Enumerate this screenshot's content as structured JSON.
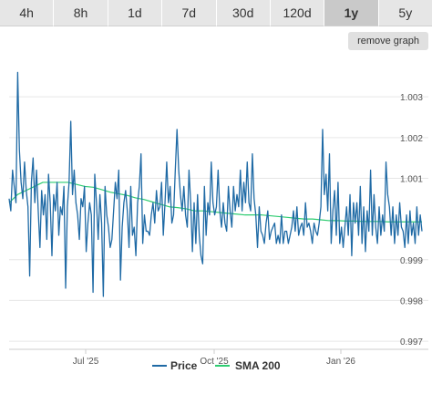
{
  "tabs": [
    {
      "label": "4h",
      "active": false
    },
    {
      "label": "8h",
      "active": false
    },
    {
      "label": "1d",
      "active": false
    },
    {
      "label": "7d",
      "active": false
    },
    {
      "label": "30d",
      "active": false
    },
    {
      "label": "120d",
      "active": false
    },
    {
      "label": "1y",
      "active": true
    },
    {
      "label": "5y",
      "active": false
    }
  ],
  "remove_graph_label": "remove graph",
  "chart_data": {
    "type": "line",
    "x_ticks": [
      "Jul '25",
      "Oct '25",
      "Jan '26"
    ],
    "y_ticks": [
      0.997,
      0.998,
      0.999,
      1.001,
      1.002,
      1.003
    ],
    "y_tick_labels": [
      "0.997",
      "0.998",
      "0.999",
      "1.001",
      "1.002",
      "1.003"
    ],
    "ylim": [
      0.9968,
      1.0039
    ],
    "grid": true,
    "legend_position": "bottom",
    "series": [
      {
        "name": "Price",
        "color": "#1f6aa5",
        "values": [
          1.0005,
          1.0002,
          1.0012,
          1.0008,
          1.0004,
          1.0036,
          1.0017,
          1.0009,
          1.0005,
          1.0014,
          1.0007,
          1.0003,
          0.9986,
          1.0009,
          1.0015,
          1.0004,
          1.0012,
          1.0002,
          0.9993,
          1.0007,
          1.0001,
          1.0006,
          0.9995,
          1.0011,
          1.0004,
          0.9991,
          1.0006,
          1.0002,
          1.0009,
          0.9996,
          1.0003,
          1.0001,
          1.0008,
          0.9983,
          1.0003,
          1.0009,
          1.0024,
          1.0006,
          1.0012,
          1.0004,
          1.0001,
          0.9995,
          1.0005,
          1.0003,
          1.0008,
          0.9992,
          0.9999,
          1.0004,
          1.0001,
          0.9982,
          1.0011,
          1.0004,
          0.9995,
          1.0006,
          0.9999,
          0.9981,
          1.0008,
          1.0001,
          0.9998,
          0.9993,
          0.9995,
          1.0002,
          1.0009,
          1.0005,
          1.0012,
          0.9985,
          0.9998,
          1.0004,
          1.0007,
          1.0002,
          0.9993,
          1.0008,
          0.9996,
          0.9998,
          0.9991,
          1.0004,
          1.0008,
          1.0016,
          0.9994,
          1.0001,
          0.9997,
          0.9997,
          0.9996,
          1.0001,
          1.0004,
          0.9999,
          1.0007,
          1.0002,
          1.0003,
          1.0009,
          0.9996,
          1.0004,
          1.0014,
          1.0004,
          1.0008,
          0.9999,
          1.0001,
          1.0012,
          1.0022,
          1.0012,
          1.0006,
          1.0002,
          1.0008,
          1.0001,
          0.9998,
          1.0012,
          1.0004,
          0.9992,
          1.0004,
          0.9994,
          1.0006,
          0.9996,
          0.9991,
          0.9989,
          1.0008,
          0.9996,
          1.0004,
          1.0001,
          1.0014,
          1.0004,
          1.0001,
          1.0003,
          1.0012,
          1.0002,
          0.9998,
          1.0004,
          0.9999,
          0.9997,
          1.0008,
          1.0002,
          0.9998,
          1.0008,
          1.0002,
          1.0006,
          1.0003,
          1.0012,
          1.0002,
          1.0009,
          1.0004,
          1.0014,
          1.0004,
          1.0002,
          1.0016,
          1.0005,
          1.0001,
          0.9993,
          1.0003,
          0.9997,
          0.9996,
          0.9994,
          0.9999,
          1.0002,
          0.9995,
          0.9997,
          0.9998,
          0.9999,
          0.9994,
          0.9996,
          0.9994,
          1.0001,
          0.9994,
          0.9997,
          0.9997,
          0.9994,
          0.9996,
          0.9998,
          1.0002,
          0.9997,
          1.0003,
          0.9996,
          0.9998,
          0.9999,
          0.9996,
          1.0004,
          0.9998,
          0.9999,
          0.9997,
          0.9994,
          0.9999,
          0.9997,
          0.9996,
          0.9999,
          1.0003,
          1.0022,
          1.0006,
          1.0011,
          1.0002,
          1.0016,
          0.9994,
          1.0002,
          1.0007,
          0.9996,
          1.0009,
          0.9994,
          0.9998,
          0.9993,
          0.9998,
          1.0003,
          0.9996,
          1.0006,
          0.9991,
          1.0004,
          0.9999,
          1.0004,
          0.9996,
          1.0008,
          0.9994,
          1.0003,
          0.9992,
          1.0002,
          0.9997,
          1.0012,
          0.9996,
          1.0006,
          0.9998,
          0.9994,
          1.0003,
          0.9996,
          1.0001,
          0.9997,
          1.0014,
          1.0006,
          1.0003,
          0.9996,
          1.0003,
          0.9994,
          1.0001,
          0.9996,
          1.0004,
          0.9998,
          0.9997,
          0.9993,
          1.0001,
          0.9994,
          1.0002,
          0.9996,
          0.9999,
          0.9994,
          1.0003,
          0.9996,
          1.0001,
          0.9997
        ]
      },
      {
        "name": "SMA 200",
        "color": "#2ecc71",
        "values": [
          1.0004,
          1.0006,
          1.0007,
          1.0008,
          1.0009,
          1.0009,
          1.0009,
          1.0009,
          1.00085,
          1.0008,
          1.00078,
          1.00072,
          1.00066,
          1.00062,
          1.00058,
          1.00052,
          1.00048,
          1.00042,
          1.00036,
          1.0003,
          1.00028,
          1.00025,
          1.0002,
          1.0002,
          1.00018,
          1.00016,
          1.00014,
          1.00012,
          1.0001,
          1.0001,
          1.0001,
          1.00008,
          1.00006,
          1.00004,
          1.00002,
          1.0,
          1.0,
          0.99998,
          0.99996,
          0.99996,
          0.99995,
          0.99995,
          0.99994,
          0.99994,
          0.99994,
          0.99993,
          0.99993,
          0.99993,
          0.99993,
          0.99993
        ]
      }
    ]
  }
}
